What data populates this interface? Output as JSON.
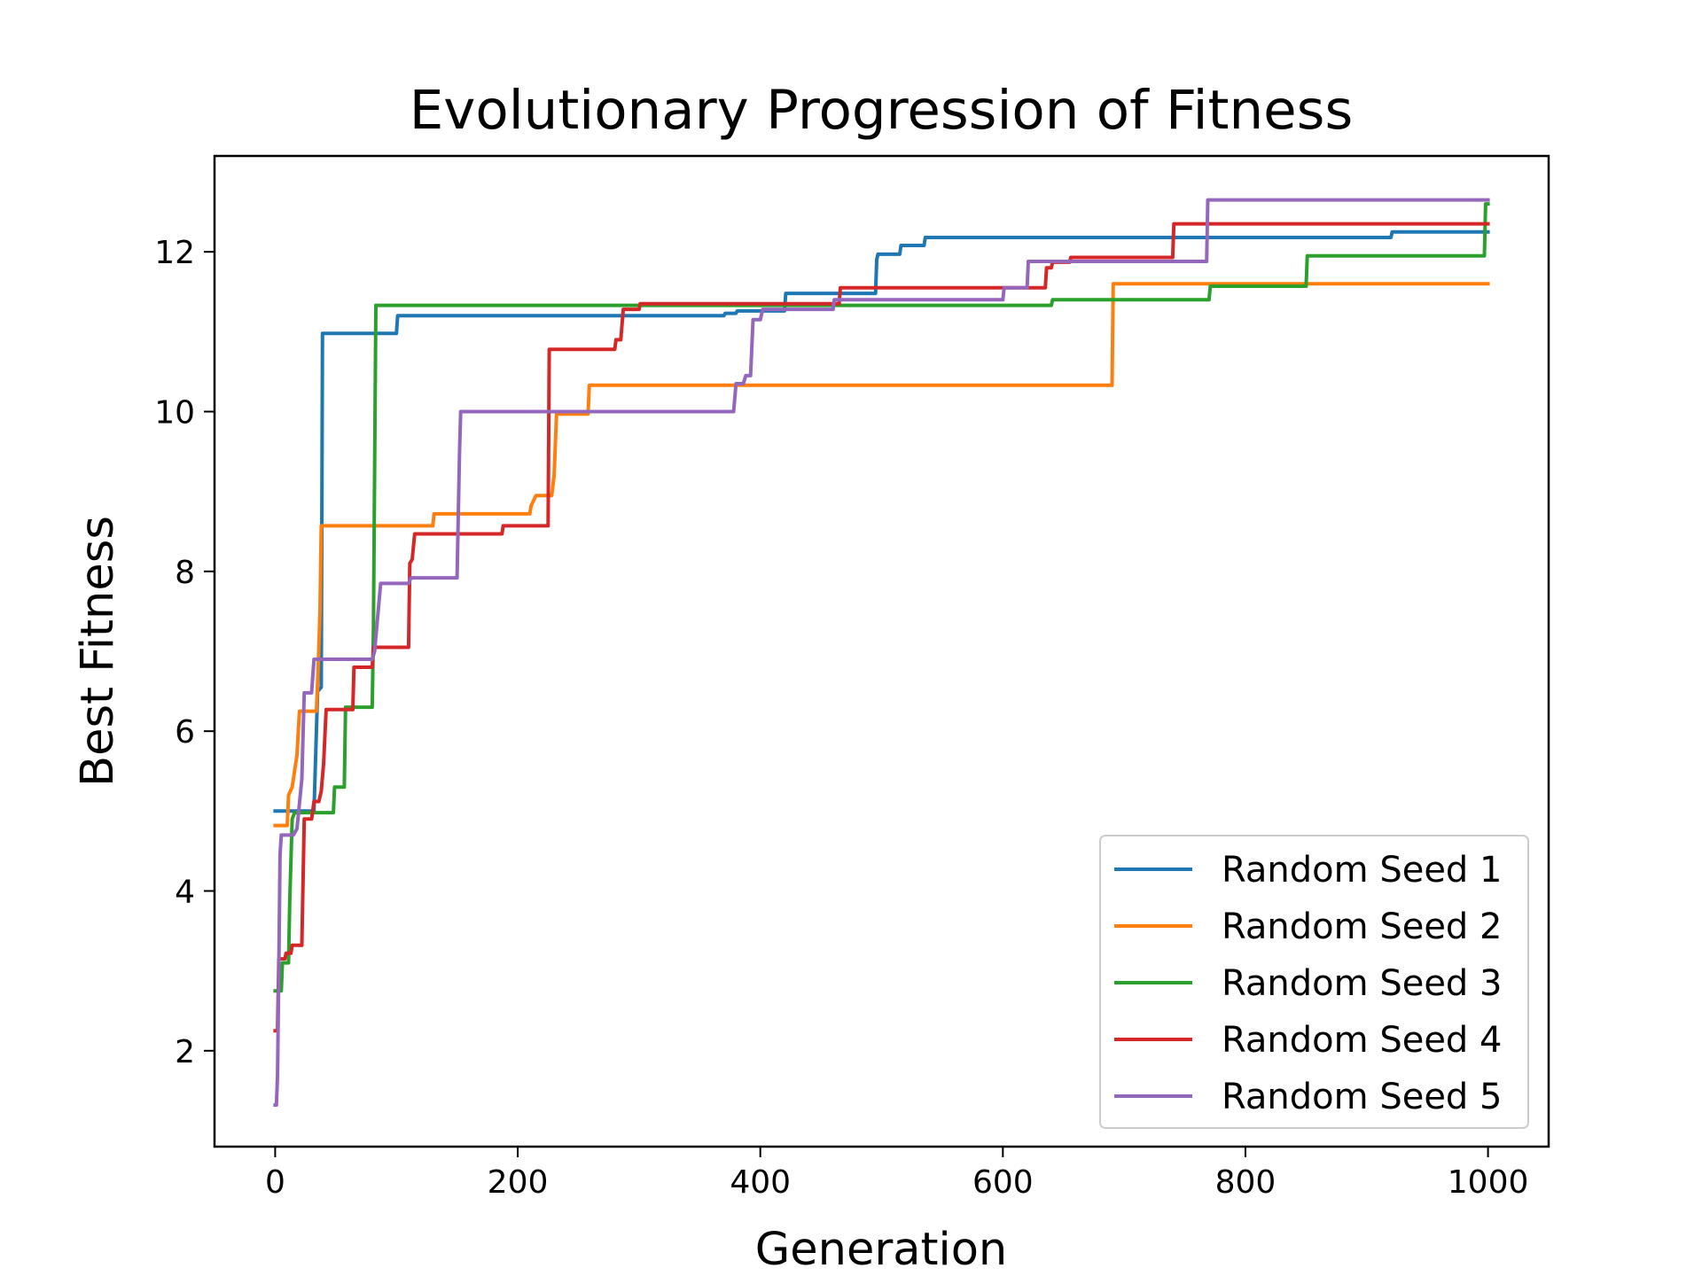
{
  "chart_data": {
    "type": "line",
    "title": "Evolutionary Progression of Fitness",
    "xlabel": "Generation",
    "ylabel": "Best Fitness",
    "xlim": [
      -50,
      1050
    ],
    "ylim": [
      0.8,
      13.2
    ],
    "xticks": [
      0,
      200,
      400,
      600,
      800,
      1000
    ],
    "yticks": [
      2,
      4,
      6,
      8,
      10,
      12
    ],
    "grid": false,
    "legend_position": "lower right",
    "series": [
      {
        "name": "Random Seed 1",
        "color": "#1f77b4",
        "points": [
          [
            0,
            5.0
          ],
          [
            32,
            5.0
          ],
          [
            35,
            6.5
          ],
          [
            38,
            6.55
          ],
          [
            39,
            10.98
          ],
          [
            100,
            10.98
          ],
          [
            101,
            11.2
          ],
          [
            370,
            11.2
          ],
          [
            371,
            11.23
          ],
          [
            380,
            11.23
          ],
          [
            381,
            11.26
          ],
          [
            420,
            11.26
          ],
          [
            421,
            11.48
          ],
          [
            495,
            11.48
          ],
          [
            496,
            11.9
          ],
          [
            497,
            11.97
          ],
          [
            515,
            11.97
          ],
          [
            516,
            12.08
          ],
          [
            535,
            12.08
          ],
          [
            536,
            12.18
          ],
          [
            920,
            12.18
          ],
          [
            921,
            12.25
          ],
          [
            1000,
            12.25
          ]
        ]
      },
      {
        "name": "Random Seed 2",
        "color": "#ff7f0e",
        "points": [
          [
            0,
            4.82
          ],
          [
            10,
            4.82
          ],
          [
            11,
            5.2
          ],
          [
            14,
            5.3
          ],
          [
            16,
            5.5
          ],
          [
            18,
            5.7
          ],
          [
            20,
            6.25
          ],
          [
            34,
            6.25
          ],
          [
            35,
            6.6
          ],
          [
            37,
            7.5
          ],
          [
            38,
            8.57
          ],
          [
            130,
            8.57
          ],
          [
            131,
            8.72
          ],
          [
            210,
            8.72
          ],
          [
            211,
            8.82
          ],
          [
            215,
            8.95
          ],
          [
            228,
            8.95
          ],
          [
            230,
            9.2
          ],
          [
            232,
            9.97
          ],
          [
            258,
            9.97
          ],
          [
            259,
            10.33
          ],
          [
            690,
            10.33
          ],
          [
            691,
            11.6
          ],
          [
            1000,
            11.6
          ]
        ]
      },
      {
        "name": "Random Seed 3",
        "color": "#2ca02c",
        "points": [
          [
            0,
            2.75
          ],
          [
            5,
            2.75
          ],
          [
            6,
            3.1
          ],
          [
            11,
            3.1
          ],
          [
            12,
            3.85
          ],
          [
            14,
            4.9
          ],
          [
            16,
            4.98
          ],
          [
            48,
            4.98
          ],
          [
            49,
            5.3
          ],
          [
            57,
            5.3
          ],
          [
            58,
            6.3
          ],
          [
            80,
            6.3
          ],
          [
            81,
            7.2
          ],
          [
            83,
            11.33
          ],
          [
            640,
            11.33
          ],
          [
            641,
            11.4
          ],
          [
            770,
            11.4
          ],
          [
            771,
            11.57
          ],
          [
            850,
            11.57
          ],
          [
            851,
            11.95
          ],
          [
            997,
            11.95
          ],
          [
            998,
            12.6
          ],
          [
            1000,
            12.6
          ]
        ]
      },
      {
        "name": "Random Seed 4",
        "color": "#d62728",
        "points": [
          [
            0,
            2.25
          ],
          [
            2,
            2.25
          ],
          [
            3,
            3.15
          ],
          [
            8,
            3.15
          ],
          [
            9,
            3.22
          ],
          [
            13,
            3.22
          ],
          [
            14,
            3.32
          ],
          [
            22,
            3.32
          ],
          [
            24,
            4.9
          ],
          [
            30,
            4.9
          ],
          [
            32,
            5.12
          ],
          [
            36,
            5.12
          ],
          [
            38,
            5.25
          ],
          [
            40,
            5.6
          ],
          [
            42,
            6.27
          ],
          [
            64,
            6.27
          ],
          [
            65,
            6.8
          ],
          [
            80,
            6.8
          ],
          [
            81,
            7.05
          ],
          [
            110,
            7.05
          ],
          [
            111,
            8.1
          ],
          [
            113,
            8.15
          ],
          [
            115,
            8.47
          ],
          [
            187,
            8.47
          ],
          [
            188,
            8.57
          ],
          [
            225,
            8.57
          ],
          [
            226,
            10.78
          ],
          [
            280,
            10.78
          ],
          [
            281,
            10.9
          ],
          [
            285,
            10.9
          ],
          [
            287,
            11.28
          ],
          [
            300,
            11.28
          ],
          [
            301,
            11.35
          ],
          [
            465,
            11.35
          ],
          [
            466,
            11.55
          ],
          [
            635,
            11.55
          ],
          [
            636,
            11.8
          ],
          [
            640,
            11.8
          ],
          [
            641,
            11.87
          ],
          [
            655,
            11.87
          ],
          [
            656,
            11.93
          ],
          [
            740,
            11.93
          ],
          [
            741,
            12.35
          ],
          [
            1000,
            12.35
          ]
        ]
      },
      {
        "name": "Random Seed 5",
        "color": "#9467bd",
        "points": [
          [
            0,
            1.32
          ],
          [
            1,
            1.32
          ],
          [
            2,
            1.7
          ],
          [
            3,
            3.0
          ],
          [
            4,
            4.45
          ],
          [
            5,
            4.7
          ],
          [
            15,
            4.7
          ],
          [
            18,
            4.78
          ],
          [
            22,
            5.4
          ],
          [
            24,
            6.48
          ],
          [
            30,
            6.48
          ],
          [
            32,
            6.9
          ],
          [
            80,
            6.9
          ],
          [
            82,
            7.0
          ],
          [
            87,
            7.85
          ],
          [
            110,
            7.85
          ],
          [
            112,
            7.92
          ],
          [
            150,
            7.92
          ],
          [
            152,
            9.5
          ],
          [
            153,
            10.0
          ],
          [
            378,
            10.0
          ],
          [
            380,
            10.35
          ],
          [
            386,
            10.35
          ],
          [
            388,
            10.45
          ],
          [
            392,
            10.45
          ],
          [
            394,
            11.15
          ],
          [
            400,
            11.15
          ],
          [
            402,
            11.28
          ],
          [
            460,
            11.28
          ],
          [
            461,
            11.4
          ],
          [
            600,
            11.4
          ],
          [
            601,
            11.55
          ],
          [
            620,
            11.55
          ],
          [
            621,
            11.88
          ],
          [
            768,
            11.88
          ],
          [
            769,
            12.65
          ],
          [
            1000,
            12.65
          ]
        ]
      }
    ]
  }
}
